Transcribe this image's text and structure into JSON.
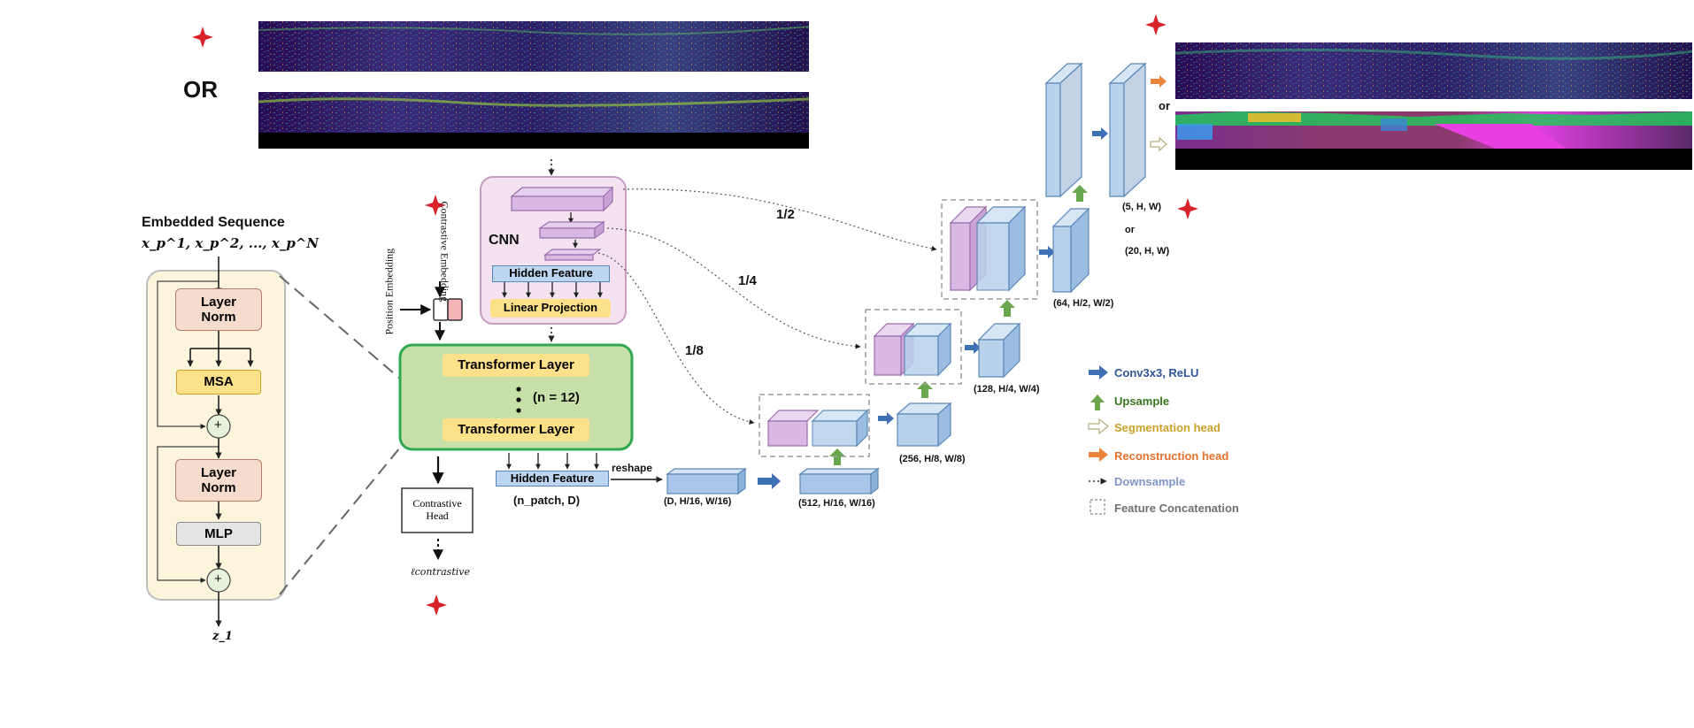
{
  "top": {
    "or_label": "OR",
    "or_small_1": "or",
    "or_small_2": "or"
  },
  "encoder_block": {
    "title": "Embedded Sequence",
    "sequence": "x_p^1, x_p^2, ..., x_p^N",
    "layer_norm_1": "Layer Norm",
    "msa": "MSA",
    "plus": "+",
    "layer_norm_2": "Layer Norm",
    "mlp": "MLP",
    "output": "z_1"
  },
  "embeddings": {
    "position": "Position Embedding",
    "contrastive": "Contrastive Embedding"
  },
  "cnn_block": {
    "title": "CNN",
    "hidden_feature": "Hidden Feature",
    "linear_projection": "Linear Projection"
  },
  "transformer": {
    "layer_top": "Transformer Layer",
    "layer_bottom": "Transformer Layer",
    "repeat": "(n = 12)"
  },
  "contrastive": {
    "head": "Contrastive Head",
    "loss": "ℓcontrastive"
  },
  "decoder": {
    "hidden_feature": "Hidden Feature",
    "hidden_dims": "(n_patch, D)",
    "reshape": "reshape",
    "skip_half": "1/2",
    "skip_quarter": "1/4",
    "skip_eighth": "1/8",
    "dims_d": "(D, H/16, W/16)",
    "dims_512": "(512, H/16, W/16)",
    "dims_256": "(256, H/8, W/8)",
    "dims_128": "(128, H/4, W/4)",
    "dims_64": "(64, H/2, W/2)",
    "dims_5": "(5, H, W)",
    "dims_20": "(20, H, W)",
    "or_label": "or"
  },
  "legend": {
    "conv": "Conv3x3, ReLU",
    "upsample": "Upsample",
    "seg_head": "Segmentation head",
    "recon_head": "Reconstruction head",
    "downsample": "Downsample",
    "concat": "Feature Concatenation"
  },
  "colors": {
    "encoder_bg": "#fdf4dc",
    "layer_norm": "#f5dccd",
    "msa": "#fde08a",
    "mlp": "#e4e4e4",
    "cnn_bg": "#f5e2f0",
    "cnn_purple": "#d9b8e3",
    "hidden_blue": "#bcd5f0",
    "linear_proj": "#fde08a",
    "transformer_bg": "#c7dfa8",
    "transformer_border": "#2fa84f",
    "decoder_blue": "#c0d8ee",
    "conv_arrow": "#3f6fb5",
    "upsample_arrow": "#6aa84f",
    "seg_arrow": "#e2d9a6",
    "recon_arrow": "#e8843c",
    "star_red": "#d8232a",
    "legend_conv": "#2e5597",
    "legend_up": "#38761d",
    "legend_seg": "#c9a227",
    "legend_recon": "#e8712a",
    "legend_down": "#7d95c9",
    "legend_concat": "#707070"
  }
}
